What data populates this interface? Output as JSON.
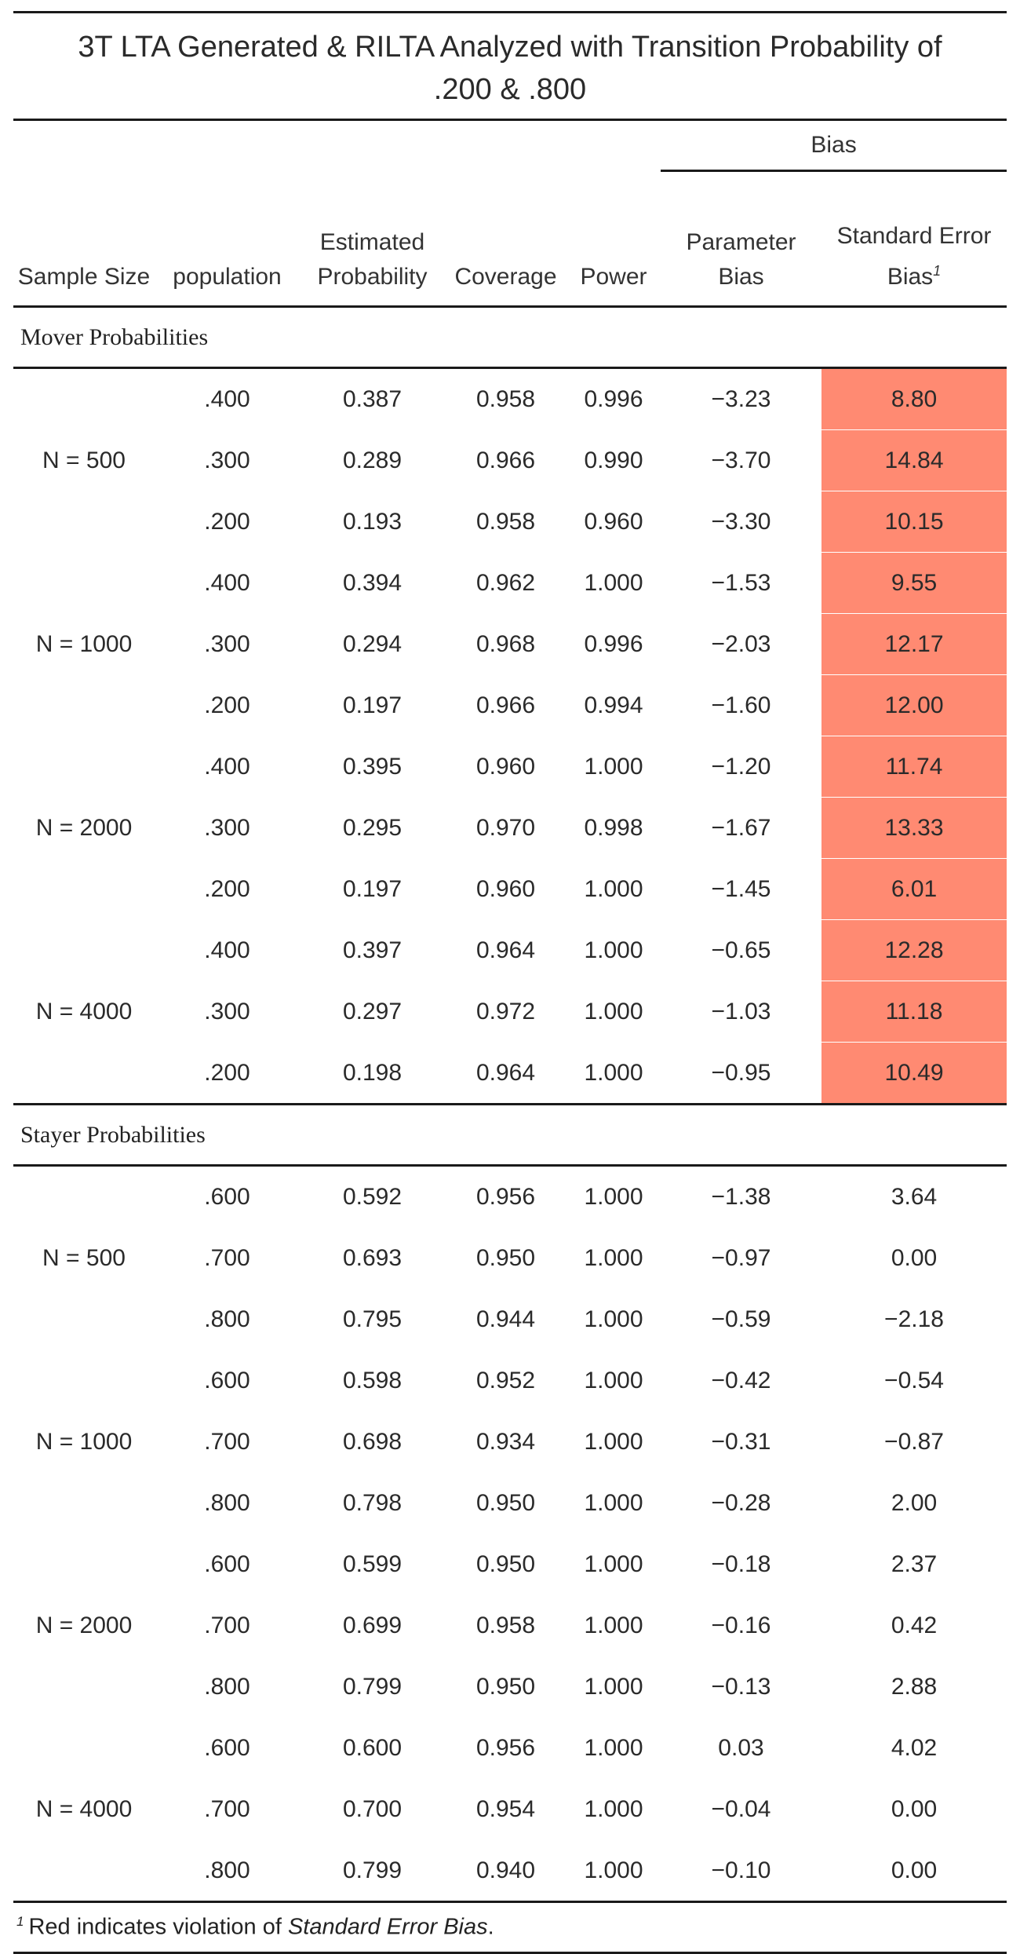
{
  "title_line1": "3T LTA Generated & RILTA Analyzed with Transition Probability of",
  "title_line2": ".200 & .800",
  "headers": {
    "bias_group": "Bias",
    "sample_size": "Sample Size",
    "population": "population",
    "estimated_probability": "Estimated Probability",
    "coverage": "Coverage",
    "power": "Power",
    "parameter_bias": "Parameter Bias",
    "standard_error_bias": "Standard Error Bias",
    "footnote_mark": "1"
  },
  "highlight_color": "#ff8a72",
  "sections": [
    {
      "label": "Mover Probabilities",
      "groups": [
        {
          "n": "N = 500",
          "rows": [
            {
              "pop": ".400",
              "est": "0.387",
              "cov": "0.958",
              "pow": "0.996",
              "pb": "−3.23",
              "seb": "8.80",
              "hl": true
            },
            {
              "pop": ".300",
              "est": "0.289",
              "cov": "0.966",
              "pow": "0.990",
              "pb": "−3.70",
              "seb": "14.84",
              "hl": true
            },
            {
              "pop": ".200",
              "est": "0.193",
              "cov": "0.958",
              "pow": "0.960",
              "pb": "−3.30",
              "seb": "10.15",
              "hl": true
            }
          ]
        },
        {
          "n": "N = 1000",
          "rows": [
            {
              "pop": ".400",
              "est": "0.394",
              "cov": "0.962",
              "pow": "1.000",
              "pb": "−1.53",
              "seb": "9.55",
              "hl": true
            },
            {
              "pop": ".300",
              "est": "0.294",
              "cov": "0.968",
              "pow": "0.996",
              "pb": "−2.03",
              "seb": "12.17",
              "hl": true
            },
            {
              "pop": ".200",
              "est": "0.197",
              "cov": "0.966",
              "pow": "0.994",
              "pb": "−1.60",
              "seb": "12.00",
              "hl": true
            }
          ]
        },
        {
          "n": "N = 2000",
          "rows": [
            {
              "pop": ".400",
              "est": "0.395",
              "cov": "0.960",
              "pow": "1.000",
              "pb": "−1.20",
              "seb": "11.74",
              "hl": true
            },
            {
              "pop": ".300",
              "est": "0.295",
              "cov": "0.970",
              "pow": "0.998",
              "pb": "−1.67",
              "seb": "13.33",
              "hl": true
            },
            {
              "pop": ".200",
              "est": "0.197",
              "cov": "0.960",
              "pow": "1.000",
              "pb": "−1.45",
              "seb": "6.01",
              "hl": true
            }
          ]
        },
        {
          "n": "N = 4000",
          "rows": [
            {
              "pop": ".400",
              "est": "0.397",
              "cov": "0.964",
              "pow": "1.000",
              "pb": "−0.65",
              "seb": "12.28",
              "hl": true
            },
            {
              "pop": ".300",
              "est": "0.297",
              "cov": "0.972",
              "pow": "1.000",
              "pb": "−1.03",
              "seb": "11.18",
              "hl": true
            },
            {
              "pop": ".200",
              "est": "0.198",
              "cov": "0.964",
              "pow": "1.000",
              "pb": "−0.95",
              "seb": "10.49",
              "hl": true
            }
          ]
        }
      ]
    },
    {
      "label": "Stayer Probabilities",
      "groups": [
        {
          "n": "N = 500",
          "rows": [
            {
              "pop": ".600",
              "est": "0.592",
              "cov": "0.956",
              "pow": "1.000",
              "pb": "−1.38",
              "seb": "3.64",
              "hl": false
            },
            {
              "pop": ".700",
              "est": "0.693",
              "cov": "0.950",
              "pow": "1.000",
              "pb": "−0.97",
              "seb": "0.00",
              "hl": false
            },
            {
              "pop": ".800",
              "est": "0.795",
              "cov": "0.944",
              "pow": "1.000",
              "pb": "−0.59",
              "seb": "−2.18",
              "hl": false
            }
          ]
        },
        {
          "n": "N = 1000",
          "rows": [
            {
              "pop": ".600",
              "est": "0.598",
              "cov": "0.952",
              "pow": "1.000",
              "pb": "−0.42",
              "seb": "−0.54",
              "hl": false
            },
            {
              "pop": ".700",
              "est": "0.698",
              "cov": "0.934",
              "pow": "1.000",
              "pb": "−0.31",
              "seb": "−0.87",
              "hl": false
            },
            {
              "pop": ".800",
              "est": "0.798",
              "cov": "0.950",
              "pow": "1.000",
              "pb": "−0.28",
              "seb": "2.00",
              "hl": false
            }
          ]
        },
        {
          "n": "N = 2000",
          "rows": [
            {
              "pop": ".600",
              "est": "0.599",
              "cov": "0.950",
              "pow": "1.000",
              "pb": "−0.18",
              "seb": "2.37",
              "hl": false
            },
            {
              "pop": ".700",
              "est": "0.699",
              "cov": "0.958",
              "pow": "1.000",
              "pb": "−0.16",
              "seb": "0.42",
              "hl": false
            },
            {
              "pop": ".800",
              "est": "0.799",
              "cov": "0.950",
              "pow": "1.000",
              "pb": "−0.13",
              "seb": "2.88",
              "hl": false
            }
          ]
        },
        {
          "n": "N = 4000",
          "rows": [
            {
              "pop": ".600",
              "est": "0.600",
              "cov": "0.956",
              "pow": "1.000",
              "pb": "0.03",
              "seb": "4.02",
              "hl": false
            },
            {
              "pop": ".700",
              "est": "0.700",
              "cov": "0.954",
              "pow": "1.000",
              "pb": "−0.04",
              "seb": "0.00",
              "hl": false
            },
            {
              "pop": ".800",
              "est": "0.799",
              "cov": "0.940",
              "pow": "1.000",
              "pb": "−0.10",
              "seb": "0.00",
              "hl": false
            }
          ]
        }
      ]
    }
  ],
  "footnote": {
    "mark": "1",
    "text_before": "Red indicates violation of ",
    "text_em": "Standard Error Bias",
    "text_after": "."
  }
}
